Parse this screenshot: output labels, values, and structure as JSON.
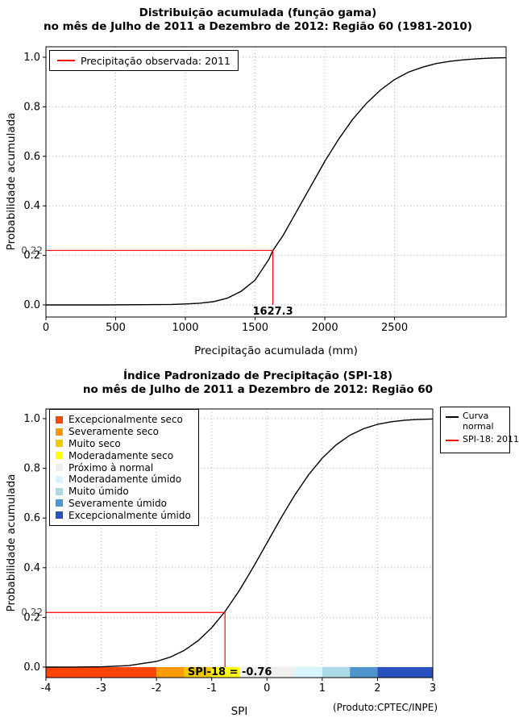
{
  "page": {
    "footer_note": "(Produto:CPTEC/INPE)"
  },
  "chart_data": [
    {
      "type": "line",
      "title": "Distribuição acumulada (função gama)",
      "subtitle": "no mês de Julho de 2011 a Dezembro de 2012: Região 60 (1981-2010)",
      "xlabel": "Precipitação acumulada (mm)",
      "ylabel": "Probabilidade acumulada",
      "xlim": [
        0,
        3300
      ],
      "ylim": [
        0,
        1
      ],
      "xticks": [
        0,
        500,
        1000,
        1500,
        2000,
        2500
      ],
      "yticks": [
        "0.0",
        "0.2",
        "0.4",
        "0.6",
        "0.8",
        "1.0"
      ],
      "grid": true,
      "legend": [
        {
          "label": "Precipitação observada: 2011",
          "color": "#FF0000"
        }
      ],
      "series": [
        {
          "name": "gamma-cdf-curve",
          "color": "#000000",
          "x": [
            0,
            400,
            700,
            900,
            1000,
            1100,
            1200,
            1300,
            1400,
            1500,
            1600,
            1627.3,
            1700,
            1800,
            1900,
            2000,
            2100,
            2200,
            2300,
            2400,
            2500,
            2600,
            2700,
            2800,
            2900,
            3000,
            3100,
            3200,
            3300
          ],
          "y": [
            0,
            0,
            0.001,
            0.002,
            0.004,
            0.007,
            0.013,
            0.027,
            0.055,
            0.1,
            0.185,
            0.22,
            0.28,
            0.38,
            0.48,
            0.58,
            0.67,
            0.75,
            0.815,
            0.868,
            0.91,
            0.94,
            0.96,
            0.975,
            0.984,
            0.99,
            0.994,
            0.997,
            0.998
          ]
        }
      ],
      "annotation": {
        "x": 1627.3,
        "y": 0.22,
        "x_label": "1627.3",
        "y_label": "0.22",
        "color": "#FF0000"
      }
    },
    {
      "type": "line",
      "title": "Índice Padronizado de Precipitação (SPI-18)",
      "subtitle": "no mês de Julho de 2011 a Dezembro de 2012: Região 60",
      "xlabel": "SPI",
      "ylabel": "Probabilidade acumulada",
      "xlim": [
        -4,
        3
      ],
      "ylim": [
        0,
        1
      ],
      "xticks": [
        -4,
        -3,
        -2,
        -1,
        0,
        1,
        2,
        3
      ],
      "yticks": [
        "0.0",
        "0.2",
        "0.4",
        "0.6",
        "0.8",
        "1.0"
      ],
      "grid": true,
      "categories_legend": [
        {
          "label": "Excepcionalmente seco",
          "color": "#FF4500"
        },
        {
          "label": "Severamente seco",
          "color": "#FF9900"
        },
        {
          "label": "Muito seco",
          "color": "#EEC900"
        },
        {
          "label": "Moderadamente seco",
          "color": "#FFFF00"
        },
        {
          "label": "Próximo à normal",
          "color": "#EFEFEF"
        },
        {
          "label": "Moderadamente úmido",
          "color": "#D6F5FF"
        },
        {
          "label": "Muito úmido",
          "color": "#ADD8E6"
        },
        {
          "label": "Severamente úmido",
          "color": "#4F94CD"
        },
        {
          "label": "Excepcionalmente úmido",
          "color": "#2A52BE"
        }
      ],
      "line_legend": [
        {
          "label_lines": [
            "Curva",
            "normal"
          ],
          "color": "#000000"
        },
        {
          "label_lines": [
            "SPI-18: 2011"
          ],
          "color": "#FF0000"
        }
      ],
      "category_bar": [
        {
          "from": -4,
          "to": -2,
          "color": "#FF4500"
        },
        {
          "from": -2,
          "to": -1.5,
          "color": "#FF9900"
        },
        {
          "from": -1.5,
          "to": -1,
          "color": "#EEC900"
        },
        {
          "from": -1,
          "to": -0.5,
          "color": "#FFFF00"
        },
        {
          "from": -0.5,
          "to": 0.5,
          "color": "#EFEFEF"
        },
        {
          "from": 0.5,
          "to": 1,
          "color": "#D6F5FF"
        },
        {
          "from": 1,
          "to": 1.5,
          "color": "#ADD8E6"
        },
        {
          "from": 1.5,
          "to": 2,
          "color": "#4F94CD"
        },
        {
          "from": 2,
          "to": 3,
          "color": "#2A52BE"
        }
      ],
      "bar_label": "SPI-18 = -0.76",
      "series": [
        {
          "name": "normal-cdf-curve",
          "color": "#000000",
          "x": [
            -4,
            -3.5,
            -3,
            -2.5,
            -2,
            -1.75,
            -1.5,
            -1.25,
            -1,
            -0.76,
            -0.5,
            -0.25,
            0,
            0.25,
            0.5,
            0.75,
            1,
            1.25,
            1.5,
            1.75,
            2,
            2.25,
            2.5,
            2.75,
            3
          ],
          "y": [
            3e-05,
            0.0002,
            0.0013,
            0.0062,
            0.0228,
            0.0401,
            0.0668,
            0.1056,
            0.1587,
            0.2236,
            0.3085,
            0.4013,
            0.5,
            0.5987,
            0.6915,
            0.7734,
            0.8413,
            0.8944,
            0.9332,
            0.9599,
            0.9772,
            0.9878,
            0.9938,
            0.997,
            0.9987
          ]
        }
      ],
      "annotation": {
        "x": -0.76,
        "y": 0.22,
        "x_label": "",
        "y_label": "0.22",
        "color": "#FF0000"
      }
    }
  ]
}
